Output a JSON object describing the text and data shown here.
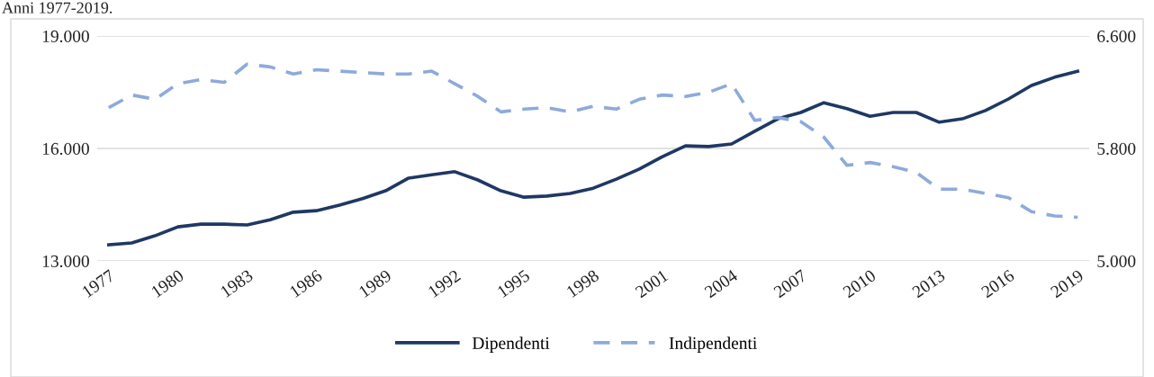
{
  "chart_data": {
    "type": "line",
    "title": "Anni 1977-2019.",
    "x": [
      1977,
      1978,
      1979,
      1980,
      1981,
      1982,
      1983,
      1984,
      1985,
      1986,
      1987,
      1988,
      1989,
      1990,
      1991,
      1992,
      1993,
      1994,
      1995,
      1996,
      1997,
      1998,
      1999,
      2000,
      2001,
      2002,
      2003,
      2004,
      2005,
      2006,
      2007,
      2008,
      2009,
      2010,
      2011,
      2012,
      2013,
      2014,
      2015,
      2016,
      2017,
      2018,
      2019
    ],
    "series": [
      {
        "name": "Dipendenti",
        "color": "#1f3864",
        "line_style": "solid",
        "values": [
          13430,
          13480,
          13670,
          13910,
          13980,
          13980,
          13960,
          14100,
          14300,
          14340,
          14490,
          14660,
          14870,
          15210,
          15300,
          15380,
          15160,
          14870,
          14700,
          14730,
          14800,
          14940,
          15180,
          15450,
          15780,
          16070,
          16050,
          16120,
          16460,
          16790,
          16960,
          17220,
          17060,
          16860,
          16960,
          16960,
          16700,
          16790,
          17010,
          17320,
          17680,
          17900,
          18060
        ]
      },
      {
        "name": "Indipendenti",
        "color": "#8eaadb",
        "line_style": "dashed",
        "axis": "y2",
        "values": [
          6090,
          6180,
          6150,
          6260,
          6290,
          6270,
          6400,
          6380,
          6330,
          6360,
          6350,
          6340,
          6330,
          6330,
          6350,
          6260,
          6170,
          6060,
          6080,
          6090,
          6060,
          6100,
          6080,
          6150,
          6180,
          6170,
          6200,
          6260,
          6000,
          6020,
          5990,
          5880,
          5680,
          5700,
          5670,
          5630,
          5510,
          5510,
          5480,
          5450,
          5350,
          5320,
          5310
        ]
      }
    ],
    "xlim": [
      1976.5,
      2019.5
    ],
    "xticks": [
      1977,
      1980,
      1983,
      1986,
      1989,
      1992,
      1995,
      1998,
      2001,
      2004,
      2007,
      2010,
      2013,
      2016,
      2019
    ],
    "ylim": [
      13000,
      19000
    ],
    "yticks": [
      {
        "value": 13000,
        "label": "13.000"
      },
      {
        "value": 16000,
        "label": "16.000"
      },
      {
        "value": 19000,
        "label": "19.000"
      }
    ],
    "y2lim": [
      5000,
      6600
    ],
    "y2ticks": [
      {
        "value": 5000,
        "label": "5.000"
      },
      {
        "value": 5800,
        "label": "5.800"
      },
      {
        "value": 6600,
        "label": "6.600"
      }
    ],
    "grid": "y",
    "legend": "bottom",
    "marker": "none"
  }
}
